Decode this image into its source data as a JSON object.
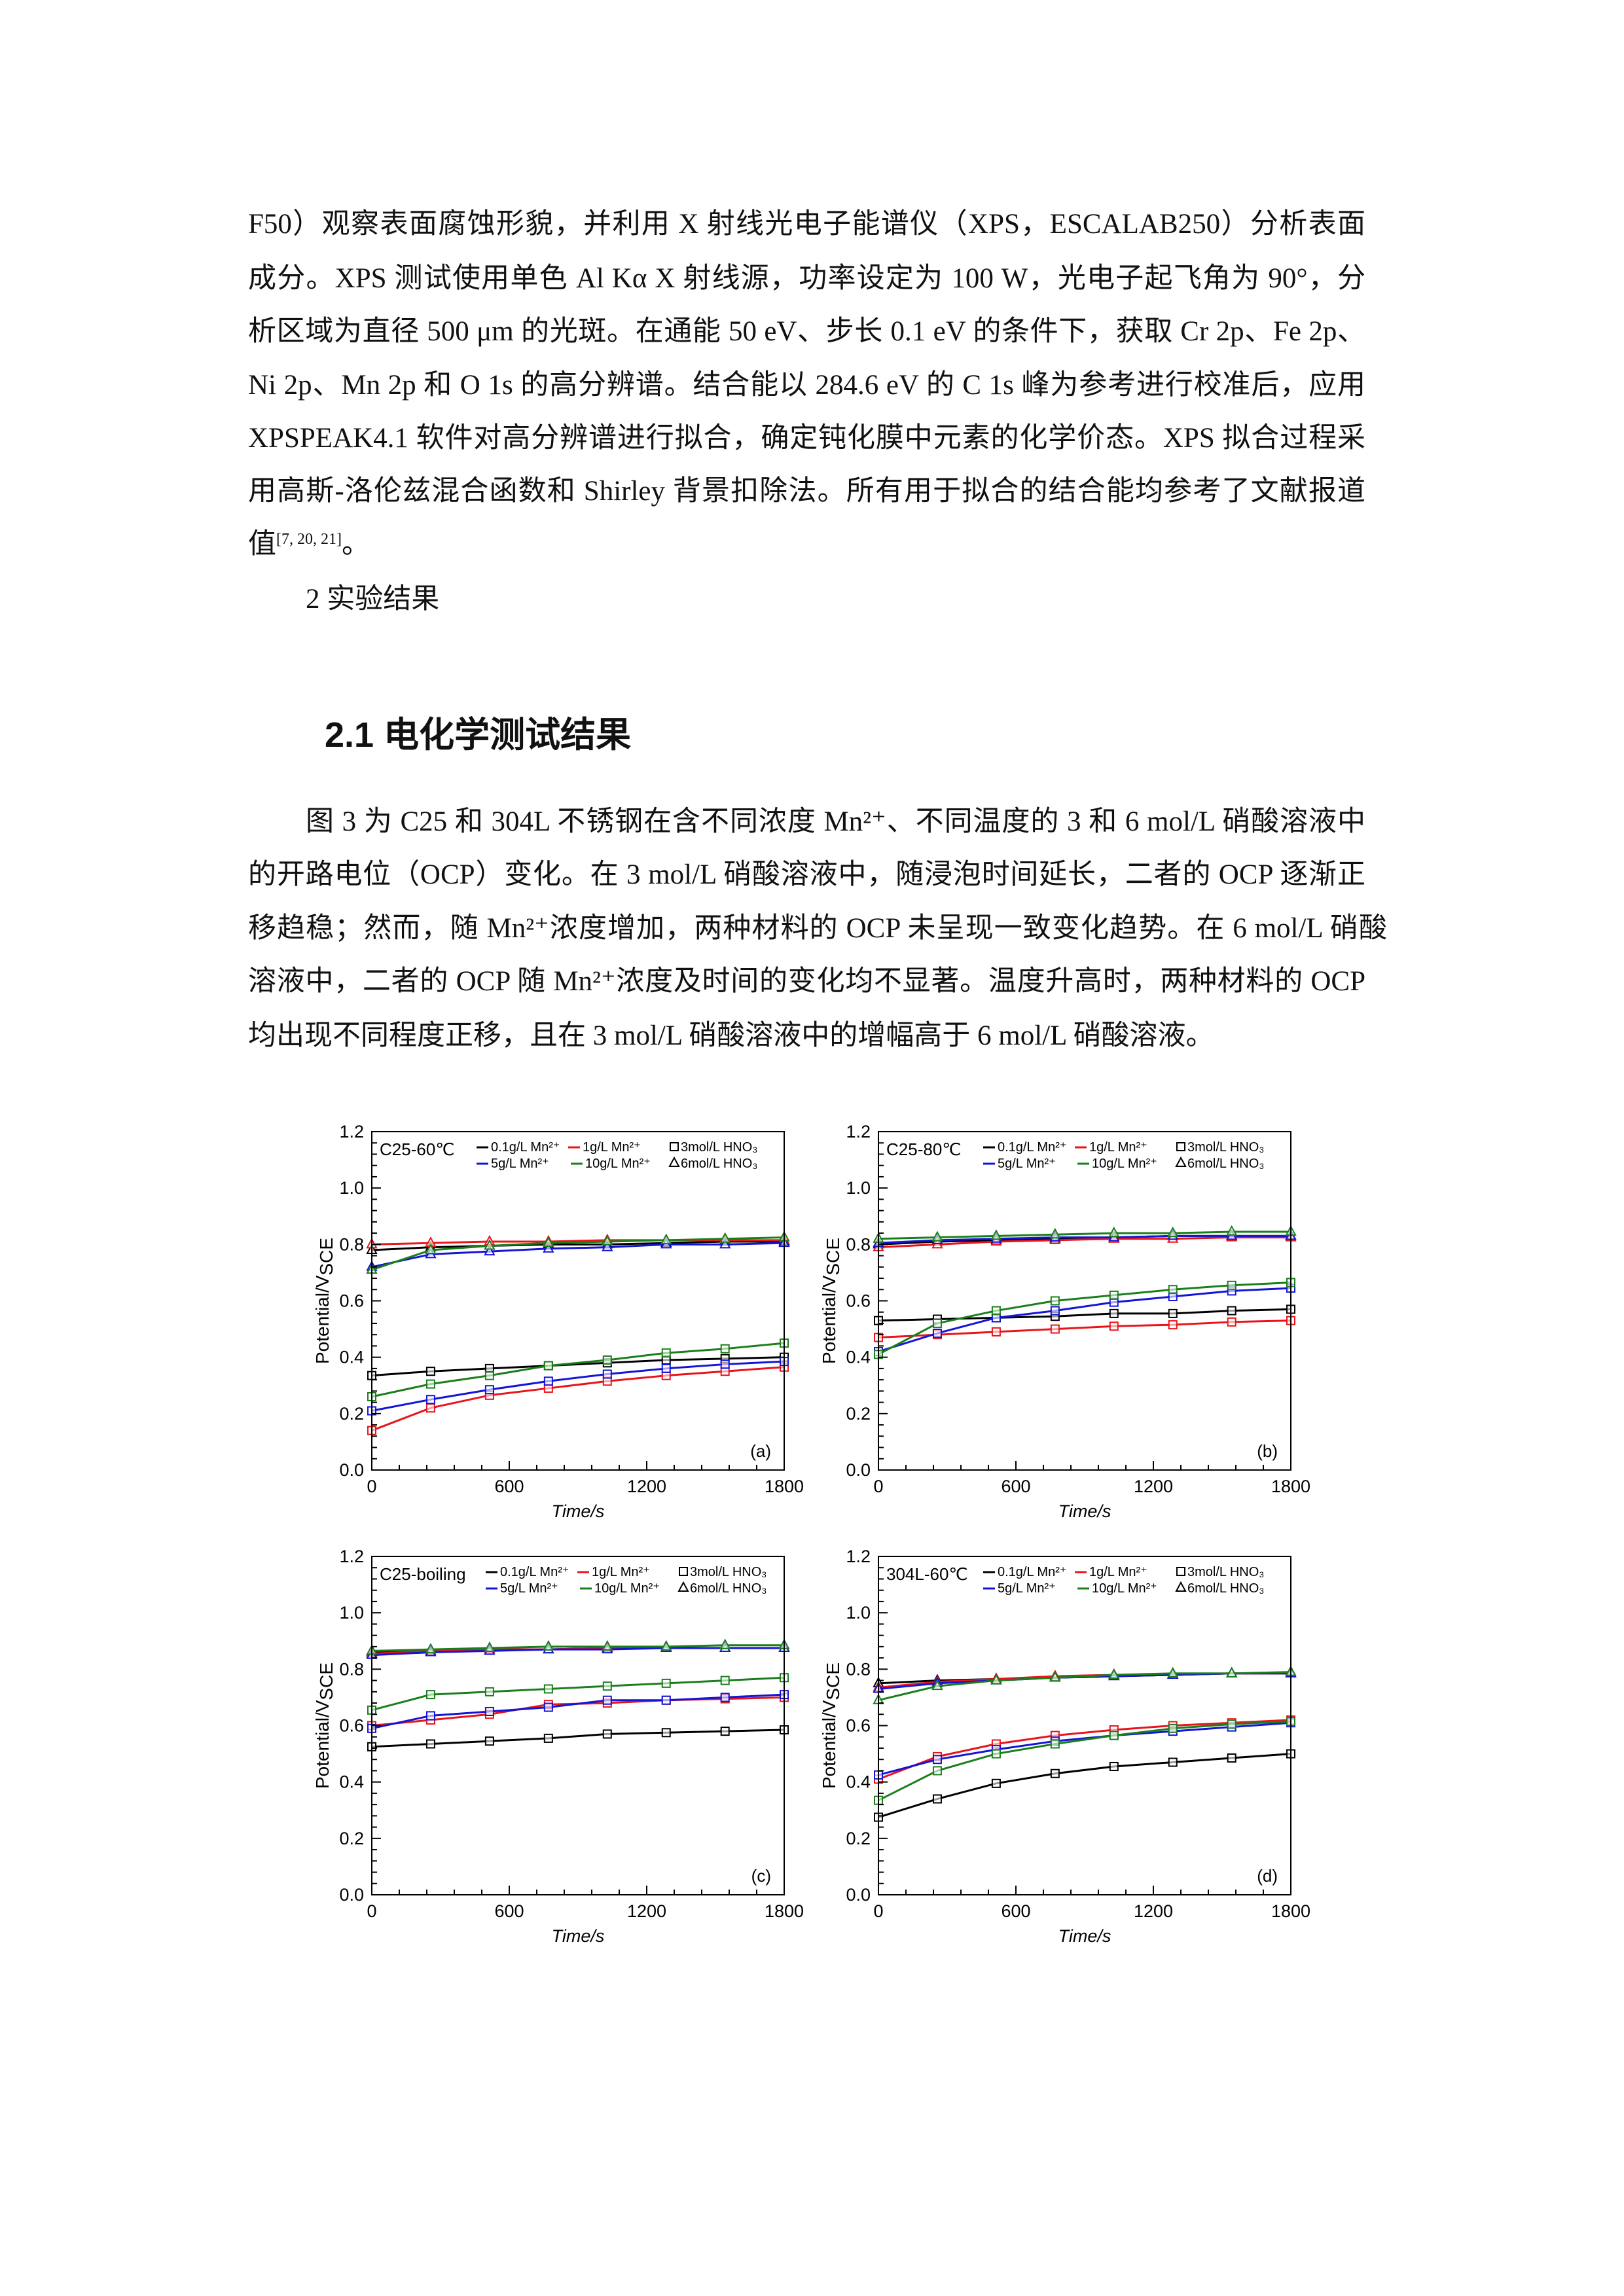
{
  "para1": [
    "F50）观察表面腐蚀形貌，并利用 X 射线光电子能谱仪（XPS，ESCALAB250）分析表面",
    "成分。XPS 测试使用单色 Al Kα X 射线源，功率设定为 100 W，光电子起飞角为 90°，分",
    "析区域为直径 500 μm 的光斑。在通能 50 eV、步长 0.1 eV 的条件下，获取 Cr 2p、Fe 2p、",
    "Ni 2p、Mn 2p 和 O 1s 的高分辨谱。结合能以 284.6 eV 的 C 1s 峰为参考进行校准后，应用",
    "XPSPEAK4.1 软件对高分辨谱进行拟合，确定钝化膜中元素的化学价态。XPS 拟合过程采",
    "用高斯-洛伦兹混合函数和 Shirley 背景扣除法。所有用于拟合的结合能均参考了文献报道"
  ],
  "para1_last": {
    "text": "值",
    "ref": "[7, 20, 21]",
    "end": "。"
  },
  "section": "2  实验结果",
  "heading": "2.1  电化学测试结果",
  "para2": [
    "图 3 为 C25 和 304L 不锈钢在含不同浓度 Mn²⁺、不同温度的 3 和 6 mol/L 硝酸溶液中",
    "的开路电位（OCP）变化。在 3 mol/L 硝酸溶液中，随浸泡时间延长，二者的 OCP 逐渐正",
    "移趋稳；然而，随 Mn²⁺浓度增加，两种材料的 OCP 未呈现一致变化趋势。在 6 mol/L 硝酸",
    "溶液中，二者的 OCP 随 Mn²⁺浓度及时间的变化均不显著。温度升高时，两种材料的 OCP",
    "均出现不同程度正移，且在 3 mol/L 硝酸溶液中的增幅高于 6 mol/L 硝酸溶液。"
  ],
  "chart_common": {
    "type": "line",
    "xlabel": "Time/s",
    "ylabel": "Potential/V",
    "ylabel_sub": "SCE",
    "xlim": [
      0,
      1800
    ],
    "ylim": [
      0,
      1.2
    ],
    "xticks": [
      "0",
      "600",
      "1200",
      "1800"
    ],
    "yticks": [
      "0.0",
      "0.2",
      "0.4",
      "0.6",
      "0.8",
      "1.0",
      "1.2"
    ],
    "x": [
      0,
      257,
      514,
      771,
      1028,
      1285,
      1542,
      1800
    ],
    "legend_concentrations": [
      {
        "label": "0.1g/L Mn²⁺",
        "color": "#000000"
      },
      {
        "label": "1g/L Mn²⁺",
        "color": "#e8141a"
      },
      {
        "label": "5g/L Mn²⁺",
        "color": "#1414d8"
      },
      {
        "label": "10g/L Mn²⁺",
        "color": "#1a7f1a"
      }
    ],
    "legend_markers": [
      {
        "label": "3mol/L HNO₃",
        "marker": "square"
      },
      {
        "label": "6mol/L HNO₃",
        "marker": "triangle"
      }
    ],
    "legend_placement": "top-right",
    "grid": false
  },
  "chart_data": [
    {
      "type": "line",
      "title": "C25-60℃",
      "panel": "(a)",
      "series": [
        {
          "conc": 0,
          "marker": "square",
          "values": [
            0.335,
            0.35,
            0.36,
            0.37,
            0.38,
            0.39,
            0.395,
            0.4
          ]
        },
        {
          "conc": 1,
          "marker": "square",
          "values": [
            0.14,
            0.22,
            0.265,
            0.29,
            0.315,
            0.335,
            0.35,
            0.365
          ]
        },
        {
          "conc": 2,
          "marker": "square",
          "values": [
            0.21,
            0.25,
            0.285,
            0.315,
            0.34,
            0.36,
            0.375,
            0.385
          ]
        },
        {
          "conc": 3,
          "marker": "square",
          "values": [
            0.26,
            0.305,
            0.335,
            0.37,
            0.39,
            0.415,
            0.43,
            0.45
          ]
        },
        {
          "conc": 0,
          "marker": "triangle",
          "values": [
            0.78,
            0.79,
            0.795,
            0.8,
            0.8,
            0.805,
            0.81,
            0.81
          ]
        },
        {
          "conc": 1,
          "marker": "triangle",
          "values": [
            0.8,
            0.805,
            0.81,
            0.81,
            0.815,
            0.815,
            0.815,
            0.815
          ]
        },
        {
          "conc": 2,
          "marker": "triangle",
          "values": [
            0.72,
            0.765,
            0.775,
            0.785,
            0.79,
            0.8,
            0.8,
            0.805
          ]
        },
        {
          "conc": 3,
          "marker": "triangle",
          "values": [
            0.71,
            0.78,
            0.795,
            0.805,
            0.81,
            0.815,
            0.82,
            0.825
          ]
        }
      ]
    },
    {
      "type": "line",
      "title": "C25-80℃",
      "panel": "(b)",
      "series": [
        {
          "conc": 0,
          "marker": "square",
          "values": [
            0.53,
            0.535,
            0.54,
            0.545,
            0.555,
            0.555,
            0.565,
            0.57
          ]
        },
        {
          "conc": 1,
          "marker": "square",
          "values": [
            0.47,
            0.48,
            0.49,
            0.5,
            0.51,
            0.515,
            0.525,
            0.53
          ]
        },
        {
          "conc": 2,
          "marker": "square",
          "values": [
            0.42,
            0.485,
            0.54,
            0.565,
            0.595,
            0.615,
            0.635,
            0.645
          ]
        },
        {
          "conc": 3,
          "marker": "square",
          "values": [
            0.41,
            0.52,
            0.565,
            0.6,
            0.62,
            0.64,
            0.655,
            0.665
          ]
        },
        {
          "conc": 0,
          "marker": "triangle",
          "values": [
            0.8,
            0.81,
            0.815,
            0.82,
            0.825,
            0.83,
            0.83,
            0.83
          ]
        },
        {
          "conc": 1,
          "marker": "triangle",
          "values": [
            0.79,
            0.8,
            0.81,
            0.815,
            0.82,
            0.82,
            0.825,
            0.825
          ]
        },
        {
          "conc": 2,
          "marker": "triangle",
          "values": [
            0.805,
            0.815,
            0.82,
            0.825,
            0.825,
            0.83,
            0.83,
            0.83
          ]
        },
        {
          "conc": 3,
          "marker": "triangle",
          "values": [
            0.82,
            0.825,
            0.83,
            0.835,
            0.84,
            0.84,
            0.845,
            0.845
          ]
        }
      ]
    },
    {
      "type": "line",
      "title": "C25-boiling",
      "panel": "(c)",
      "series": [
        {
          "conc": 0,
          "marker": "square",
          "values": [
            0.525,
            0.535,
            0.545,
            0.555,
            0.57,
            0.575,
            0.58,
            0.585
          ]
        },
        {
          "conc": 1,
          "marker": "square",
          "values": [
            0.6,
            0.62,
            0.64,
            0.675,
            0.68,
            0.69,
            0.695,
            0.7
          ]
        },
        {
          "conc": 2,
          "marker": "square",
          "values": [
            0.59,
            0.635,
            0.65,
            0.665,
            0.69,
            0.69,
            0.7,
            0.71
          ]
        },
        {
          "conc": 3,
          "marker": "square",
          "values": [
            0.655,
            0.71,
            0.72,
            0.73,
            0.74,
            0.75,
            0.76,
            0.77
          ]
        },
        {
          "conc": 0,
          "marker": "triangle",
          "values": [
            0.86,
            0.865,
            0.87,
            0.87,
            0.875,
            0.875,
            0.875,
            0.875
          ]
        },
        {
          "conc": 1,
          "marker": "triangle",
          "values": [
            0.855,
            0.865,
            0.87,
            0.87,
            0.875,
            0.875,
            0.875,
            0.875
          ]
        },
        {
          "conc": 2,
          "marker": "triangle",
          "values": [
            0.85,
            0.86,
            0.865,
            0.87,
            0.87,
            0.875,
            0.875,
            0.875
          ]
        },
        {
          "conc": 3,
          "marker": "triangle",
          "values": [
            0.865,
            0.87,
            0.875,
            0.88,
            0.88,
            0.88,
            0.885,
            0.885
          ]
        }
      ]
    },
    {
      "type": "line",
      "title": "304L-60℃",
      "panel": "(d)",
      "series": [
        {
          "conc": 0,
          "marker": "square",
          "values": [
            0.275,
            0.34,
            0.395,
            0.43,
            0.455,
            0.47,
            0.485,
            0.5
          ]
        },
        {
          "conc": 1,
          "marker": "square",
          "values": [
            0.41,
            0.49,
            0.535,
            0.565,
            0.585,
            0.6,
            0.61,
            0.62
          ]
        },
        {
          "conc": 2,
          "marker": "square",
          "values": [
            0.425,
            0.48,
            0.515,
            0.545,
            0.565,
            0.58,
            0.595,
            0.61
          ]
        },
        {
          "conc": 3,
          "marker": "square",
          "values": [
            0.335,
            0.44,
            0.5,
            0.535,
            0.565,
            0.59,
            0.605,
            0.615
          ]
        },
        {
          "conc": 0,
          "marker": "triangle",
          "values": [
            0.75,
            0.76,
            0.765,
            0.77,
            0.775,
            0.78,
            0.785,
            0.785
          ]
        },
        {
          "conc": 1,
          "marker": "triangle",
          "values": [
            0.735,
            0.755,
            0.765,
            0.775,
            0.78,
            0.78,
            0.785,
            0.785
          ]
        },
        {
          "conc": 2,
          "marker": "triangle",
          "values": [
            0.73,
            0.75,
            0.76,
            0.77,
            0.775,
            0.78,
            0.785,
            0.785
          ]
        },
        {
          "conc": 3,
          "marker": "triangle",
          "values": [
            0.69,
            0.74,
            0.76,
            0.77,
            0.78,
            0.785,
            0.785,
            0.79
          ]
        }
      ]
    }
  ]
}
